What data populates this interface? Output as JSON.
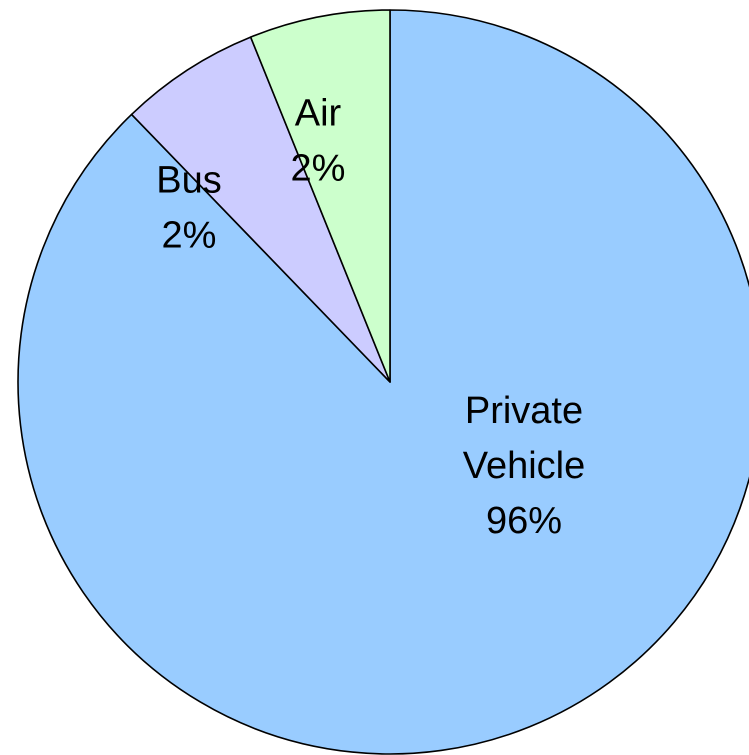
{
  "chart_data": {
    "type": "pie",
    "title": "",
    "slices": [
      {
        "label": "Private Vehicle",
        "value": 96,
        "value_label": "96%",
        "color": "#99ccff"
      },
      {
        "label": "Bus",
        "value": 2,
        "value_label": "2%",
        "color": "#ccccff"
      },
      {
        "label": "Air",
        "value": 2,
        "value_label": "2%",
        "color": "#ccffcc"
      }
    ],
    "legend": "none",
    "start_angle": "12 o'clock",
    "direction": "clockwise"
  }
}
